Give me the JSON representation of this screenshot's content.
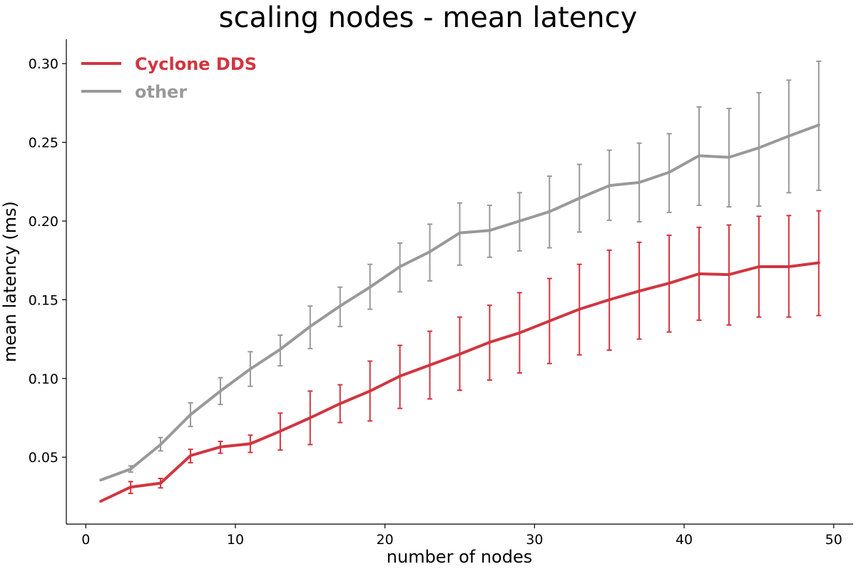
{
  "chart_data": {
    "type": "line",
    "title": "scaling nodes - mean latency",
    "xlabel": "number of nodes",
    "ylabel": "mean latency (ms)",
    "xlim": [
      -1.3,
      51.3
    ],
    "ylim": [
      0.0075,
      0.3155
    ],
    "xticks": [
      {
        "value": 0,
        "label": "0"
      },
      {
        "value": 10,
        "label": "10"
      },
      {
        "value": 20,
        "label": "20"
      },
      {
        "value": 30,
        "label": "30"
      },
      {
        "value": 40,
        "label": "40"
      },
      {
        "value": 50,
        "label": "50"
      }
    ],
    "yticks": [
      {
        "value": 0.05,
        "label": "0.05"
      },
      {
        "value": 0.1,
        "label": "0.10"
      },
      {
        "value": 0.15,
        "label": "0.15"
      },
      {
        "value": 0.2,
        "label": "0.20"
      },
      {
        "value": 0.25,
        "label": "0.25"
      },
      {
        "value": 0.3,
        "label": "0.30"
      }
    ],
    "grid": false,
    "legend": "top-left",
    "x": [
      1,
      3,
      5,
      7,
      9,
      11,
      13,
      15,
      17,
      19,
      21,
      23,
      25,
      27,
      29,
      31,
      33,
      35,
      37,
      39,
      41,
      43,
      45,
      47,
      49
    ],
    "series": [
      {
        "name": "Cyclone DDS",
        "color": "#d1353f",
        "values": [
          0.022,
          0.031,
          0.0335,
          0.051,
          0.0565,
          0.0585,
          0.0665,
          0.075,
          0.084,
          0.092,
          0.1015,
          0.1085,
          0.1155,
          0.123,
          0.129,
          0.1365,
          0.144,
          0.15,
          0.1555,
          0.1605,
          0.1665,
          0.166,
          0.171,
          0.171,
          0.1735
        ],
        "err_low": [
          0.022,
          0.027,
          0.0305,
          0.0465,
          0.0525,
          0.053,
          0.0545,
          0.058,
          0.072,
          0.073,
          0.081,
          0.087,
          0.0925,
          0.099,
          0.1035,
          0.1095,
          0.115,
          0.118,
          0.125,
          0.1295,
          0.137,
          0.134,
          0.139,
          0.139,
          0.14
        ],
        "err_high": [
          0.022,
          0.0345,
          0.0365,
          0.055,
          0.06,
          0.064,
          0.078,
          0.092,
          0.096,
          0.111,
          0.121,
          0.13,
          0.139,
          0.1465,
          0.1545,
          0.1635,
          0.1725,
          0.1815,
          0.1865,
          0.191,
          0.196,
          0.1975,
          0.203,
          0.2035,
          0.2065
        ]
      },
      {
        "name": "other",
        "color": "#999999",
        "values": [
          0.0355,
          0.0425,
          0.058,
          0.077,
          0.092,
          0.106,
          0.1185,
          0.133,
          0.146,
          0.158,
          0.171,
          0.1805,
          0.1925,
          0.194,
          0.2,
          0.206,
          0.2145,
          0.2225,
          0.2245,
          0.231,
          0.2415,
          0.2405,
          0.2465,
          0.254,
          0.261
        ],
        "err_low": [
          0.0355,
          0.0405,
          0.054,
          0.0695,
          0.0835,
          0.095,
          0.108,
          0.119,
          0.133,
          0.144,
          0.155,
          0.162,
          0.172,
          0.177,
          0.181,
          0.183,
          0.193,
          0.2005,
          0.1995,
          0.2055,
          0.21,
          0.209,
          0.2095,
          0.218,
          0.2195
        ],
        "err_high": [
          0.0355,
          0.0445,
          0.0625,
          0.0845,
          0.1005,
          0.117,
          0.1275,
          0.146,
          0.158,
          0.1725,
          0.186,
          0.198,
          0.2115,
          0.21,
          0.218,
          0.2285,
          0.236,
          0.245,
          0.2495,
          0.2555,
          0.2725,
          0.2715,
          0.2815,
          0.2895,
          0.3015
        ]
      }
    ]
  }
}
